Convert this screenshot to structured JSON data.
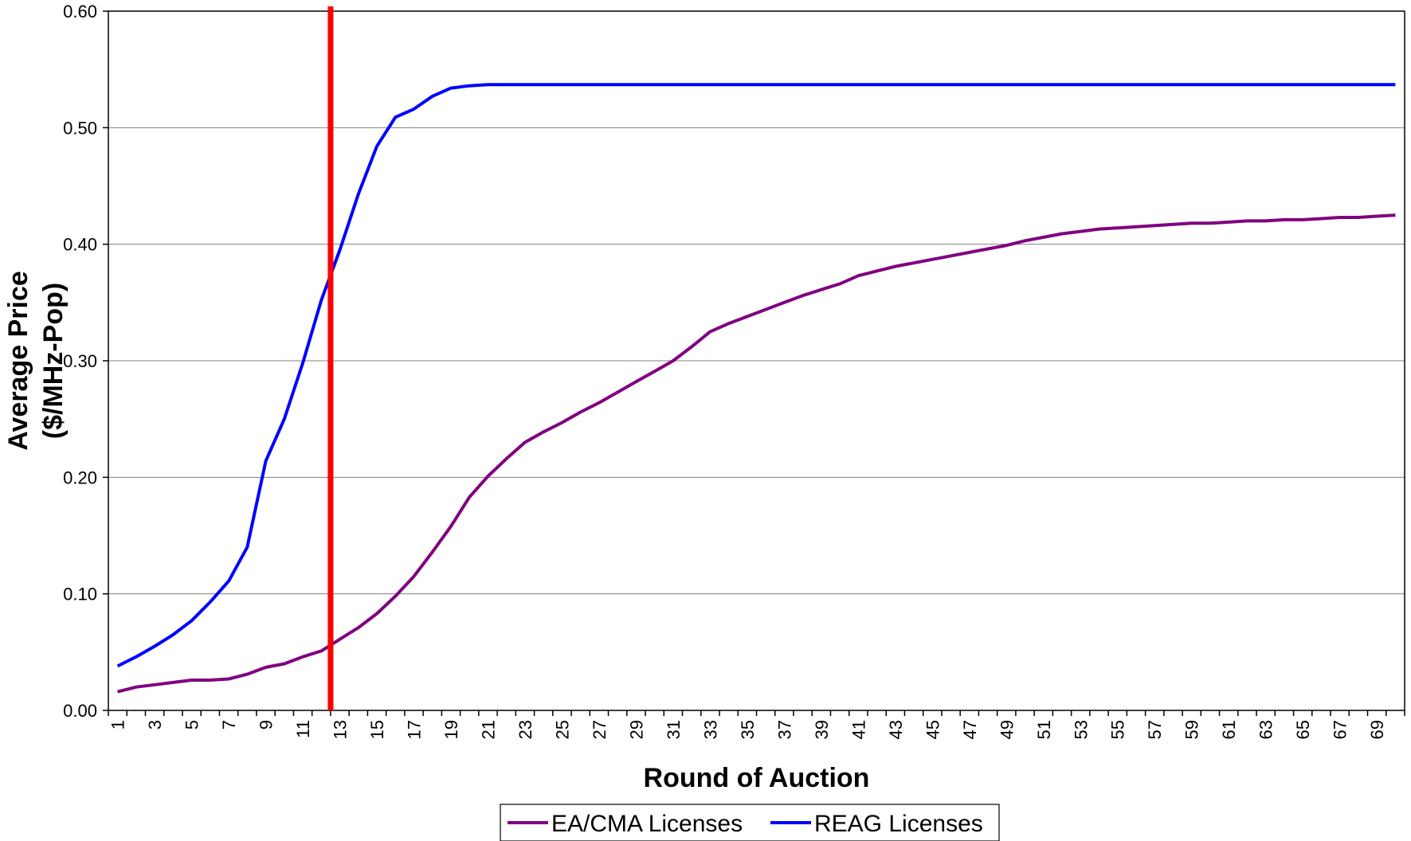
{
  "chart_data": {
    "type": "line",
    "title": "",
    "xlabel": "Round of Auction",
    "ylabel_lines": [
      "Average Price",
      "($/MHz-Pop)"
    ],
    "ylim": [
      0,
      0.6
    ],
    "y_ticks": [
      "0.00",
      "0.10",
      "0.20",
      "0.30",
      "0.40",
      "0.50",
      "0.60"
    ],
    "x_ticks": [
      "1",
      "3",
      "5",
      "7",
      "9",
      "11",
      "13",
      "15",
      "17",
      "19",
      "21",
      "23",
      "25",
      "27",
      "29",
      "31",
      "33",
      "35",
      "37",
      "39",
      "41",
      "43",
      "45",
      "47",
      "49",
      "51",
      "53",
      "55",
      "57",
      "59",
      "61",
      "63",
      "65",
      "67",
      "69"
    ],
    "x": [
      1,
      2,
      3,
      4,
      5,
      6,
      7,
      8,
      9,
      10,
      11,
      12,
      13,
      14,
      15,
      16,
      17,
      18,
      19,
      20,
      21,
      22,
      23,
      24,
      25,
      26,
      27,
      28,
      29,
      30,
      31,
      32,
      33,
      34,
      35,
      36,
      37,
      38,
      39,
      40,
      41,
      42,
      43,
      44,
      45,
      46,
      47,
      48,
      49,
      50,
      51,
      52,
      53,
      54,
      55,
      56,
      57,
      58,
      59,
      60,
      61,
      62,
      63,
      64,
      65,
      66,
      67,
      68,
      69,
      70
    ],
    "grid": "horizontal",
    "legend_position": "bottom-center",
    "marker_line": {
      "x": 12.5,
      "color": "#ff0000"
    },
    "series": [
      {
        "name": "EA/CMA Licenses",
        "color": "#800080",
        "values": [
          0.016,
          0.02,
          0.022,
          0.024,
          0.026,
          0.026,
          0.027,
          0.031,
          0.037,
          0.04,
          0.046,
          0.051,
          0.061,
          0.071,
          0.083,
          0.098,
          0.115,
          0.136,
          0.158,
          0.183,
          0.201,
          0.216,
          0.23,
          0.239,
          0.247,
          0.256,
          0.264,
          0.273,
          0.282,
          0.291,
          0.3,
          0.312,
          0.325,
          0.332,
          0.338,
          0.344,
          0.35,
          0.356,
          0.361,
          0.366,
          0.373,
          0.377,
          0.381,
          0.384,
          0.387,
          0.39,
          0.393,
          0.396,
          0.399,
          0.403,
          0.406,
          0.409,
          0.411,
          0.413,
          0.414,
          0.415,
          0.416,
          0.417,
          0.418,
          0.418,
          0.419,
          0.42,
          0.42,
          0.421,
          0.421,
          0.422,
          0.423,
          0.423,
          0.424,
          0.425
        ]
      },
      {
        "name": "REAG Licenses",
        "color": "#0000ff",
        "values": [
          0.038,
          0.046,
          0.055,
          0.065,
          0.077,
          0.093,
          0.111,
          0.14,
          0.214,
          0.25,
          0.298,
          0.352,
          0.395,
          0.443,
          0.484,
          0.509,
          0.516,
          0.527,
          0.534,
          0.536,
          0.537,
          0.537,
          0.537,
          0.537,
          0.537,
          0.537,
          0.537,
          0.537,
          0.537,
          0.537,
          0.537,
          0.537,
          0.537,
          0.537,
          0.537,
          0.537,
          0.537,
          0.537,
          0.537,
          0.537,
          0.537,
          0.537,
          0.537,
          0.537,
          0.537,
          0.537,
          0.537,
          0.537,
          0.537,
          0.537,
          0.537,
          0.537,
          0.537,
          0.537,
          0.537,
          0.537,
          0.537,
          0.537,
          0.537,
          0.537,
          0.537,
          0.537,
          0.537,
          0.537,
          0.537,
          0.537,
          0.537,
          0.537,
          0.537,
          0.537
        ]
      }
    ]
  }
}
